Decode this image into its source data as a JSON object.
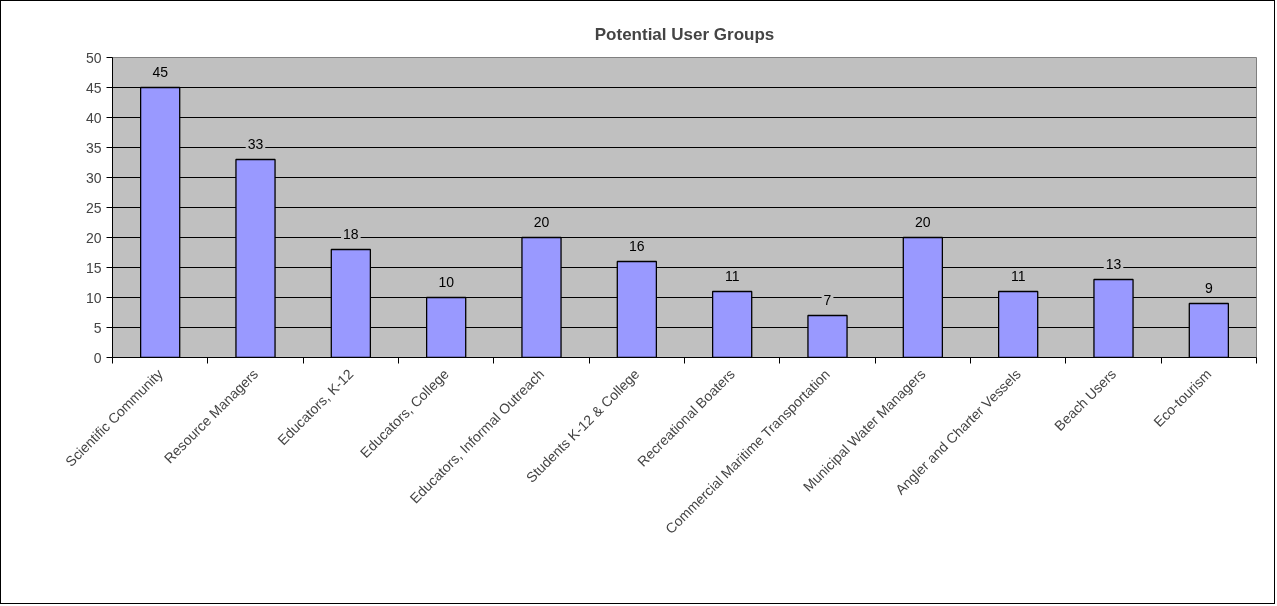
{
  "chart_data": {
    "type": "bar",
    "title": "Potential User Groups",
    "categories": [
      "Scientific Community",
      "Resource Managers",
      "Educators, K-12",
      "Educators, College",
      "Educators, Informal Outreach",
      "Students K-12 & College",
      "Recreational Boaters",
      "Commercial Maritime Transportation",
      "Municipal Water Managers",
      "Angler and Charter Vessels",
      "Beach Users",
      "Eco-tourism"
    ],
    "values": [
      45,
      33,
      18,
      10,
      20,
      16,
      11,
      7,
      20,
      11,
      13,
      9
    ],
    "color": "#9999ff",
    "ylim": [
      0,
      50
    ],
    "yticks": [
      0,
      5,
      10,
      15,
      20,
      25,
      30,
      35,
      40,
      45,
      50
    ],
    "grid": "y",
    "data_labels": true
  }
}
